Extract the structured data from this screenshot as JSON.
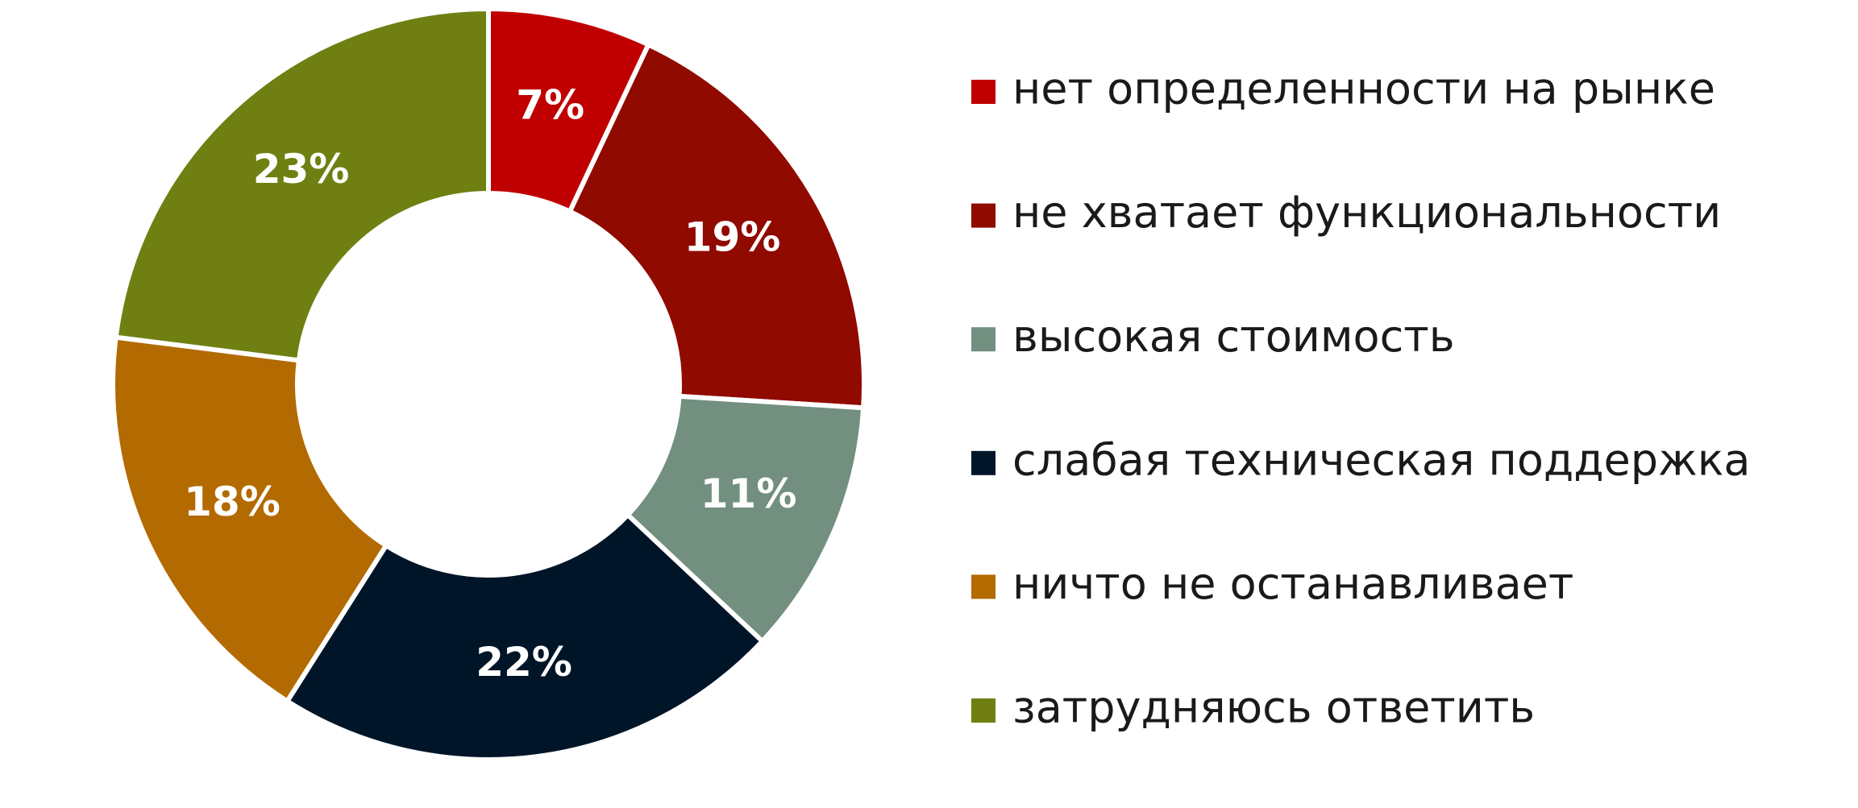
{
  "chart_data": {
    "type": "donut",
    "categories": [
      "нет определенности на рынке",
      "не хватает функциональности",
      "высокая стоимость",
      "слабая техническая поддержка",
      "ничто не останавливает",
      "затрудняюсь ответить"
    ],
    "values": [
      7,
      19,
      11,
      22,
      18,
      23
    ],
    "value_labels": [
      "7%",
      "19%",
      "11%",
      "22%",
      "18%",
      "23%"
    ],
    "colors": [
      "#c00000",
      "#900a00",
      "#728f80",
      "#011528",
      "#b36a00",
      "#6f7f12"
    ],
    "legend": "right"
  }
}
